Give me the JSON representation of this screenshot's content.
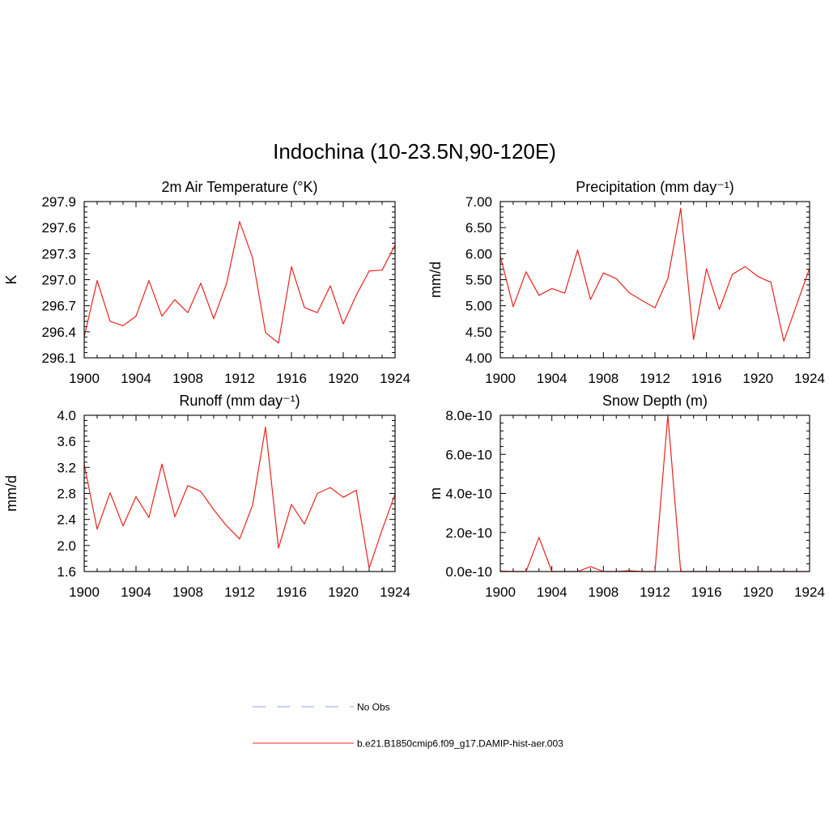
{
  "figure": {
    "title": "Indochina (10-23.5N,90-120E)"
  },
  "chart_data": [
    {
      "type": "line",
      "title": "2m Air Temperature (°K)",
      "ylabel": "K",
      "x": [
        1900,
        1901,
        1902,
        1903,
        1904,
        1905,
        1906,
        1907,
        1908,
        1909,
        1910,
        1911,
        1912,
        1913,
        1914,
        1915,
        1916,
        1917,
        1918,
        1919,
        1920,
        1921,
        1922,
        1923,
        1924
      ],
      "xlim": [
        1900,
        1924
      ],
      "xticks": [
        1900,
        1904,
        1908,
        1912,
        1916,
        1920,
        1924
      ],
      "ylim": [
        296.1,
        297.9
      ],
      "yticks": [
        "296.1",
        "296.4",
        "296.7",
        "297.0",
        "297.3",
        "297.6",
        "297.9"
      ],
      "series": [
        {
          "values": [
            296.34,
            296.99,
            296.52,
            296.47,
            296.58,
            296.99,
            296.58,
            296.77,
            296.62,
            296.96,
            296.55,
            296.96,
            297.67,
            297.25,
            296.39,
            296.27,
            297.15,
            296.68,
            296.62,
            296.93,
            296.49,
            296.82,
            297.1,
            297.11,
            297.4
          ]
        }
      ]
    },
    {
      "type": "line",
      "title": "Precipitation (mm day⁻¹)",
      "ylabel": "mm/d",
      "x": [
        1900,
        1901,
        1902,
        1903,
        1904,
        1905,
        1906,
        1907,
        1908,
        1909,
        1910,
        1911,
        1912,
        1913,
        1914,
        1915,
        1916,
        1917,
        1918,
        1919,
        1920,
        1921,
        1922,
        1923,
        1924
      ],
      "xlim": [
        1900,
        1924
      ],
      "xticks": [
        1900,
        1904,
        1908,
        1912,
        1916,
        1920,
        1924
      ],
      "ylim": [
        4.0,
        7.0
      ],
      "yticks": [
        "4.00",
        "4.50",
        "5.00",
        "5.50",
        "6.00",
        "6.50",
        "7.00"
      ],
      "series": [
        {
          "values": [
            5.95,
            4.98,
            5.65,
            5.2,
            5.33,
            5.24,
            6.07,
            5.12,
            5.63,
            5.52,
            5.25,
            5.1,
            4.96,
            5.52,
            6.87,
            4.35,
            5.71,
            4.93,
            5.6,
            5.75,
            5.56,
            5.45,
            4.32,
            5.02,
            5.72
          ]
        }
      ]
    },
    {
      "type": "line",
      "title": "Runoff (mm day⁻¹)",
      "ylabel": "mm/d",
      "x": [
        1900,
        1901,
        1902,
        1903,
        1904,
        1905,
        1906,
        1907,
        1908,
        1909,
        1910,
        1911,
        1912,
        1913,
        1914,
        1915,
        1916,
        1917,
        1918,
        1919,
        1920,
        1921,
        1922,
        1923,
        1924
      ],
      "xlim": [
        1900,
        1924
      ],
      "xticks": [
        1900,
        1904,
        1908,
        1912,
        1916,
        1920,
        1924
      ],
      "ylim": [
        1.6,
        4.0
      ],
      "yticks": [
        "1.6",
        "2.0",
        "2.4",
        "2.8",
        "3.2",
        "3.6",
        "4.0"
      ],
      "series": [
        {
          "values": [
            3.25,
            2.25,
            2.81,
            2.3,
            2.75,
            2.43,
            3.25,
            2.44,
            2.92,
            2.83,
            2.55,
            2.3,
            2.1,
            2.62,
            3.82,
            1.96,
            2.63,
            2.33,
            2.8,
            2.89,
            2.74,
            2.85,
            1.65,
            2.24,
            2.79
          ]
        }
      ]
    },
    {
      "type": "line",
      "title": "Snow Depth (m)",
      "ylabel": "m",
      "x": [
        1900,
        1901,
        1902,
        1903,
        1904,
        1905,
        1906,
        1907,
        1908,
        1909,
        1910,
        1911,
        1912,
        1913,
        1914,
        1915,
        1916,
        1917,
        1918,
        1919,
        1920,
        1921,
        1922,
        1923,
        1924
      ],
      "xlim": [
        1900,
        1924
      ],
      "xticks": [
        1900,
        1904,
        1908,
        1912,
        1916,
        1920,
        1924
      ],
      "ylim": [
        0,
        8e-10
      ],
      "yticks": [
        "0.0e-10",
        "2.0e-10",
        "4.0e-10",
        "6.0e-10",
        "8.0e-10"
      ],
      "series": [
        {
          "values": [
            2e-12,
            0,
            0,
            1.75e-10,
            0,
            0,
            0,
            2.5e-11,
            0,
            0,
            4e-12,
            0,
            0,
            8e-10,
            0,
            0,
            0,
            0,
            0,
            0,
            0,
            0,
            0,
            0,
            0
          ]
        }
      ]
    }
  ],
  "legend": {
    "entries": [
      {
        "label": "No Obs",
        "color": "#aab2ee",
        "style": "dashed"
      },
      {
        "label": "b.e21.B1850cmip6.f09_g17.DAMIP-hist-aer.003",
        "color": "#ff2020",
        "style": "solid"
      }
    ]
  },
  "colors": {
    "series": "#e8231f",
    "axes": "#000000"
  }
}
